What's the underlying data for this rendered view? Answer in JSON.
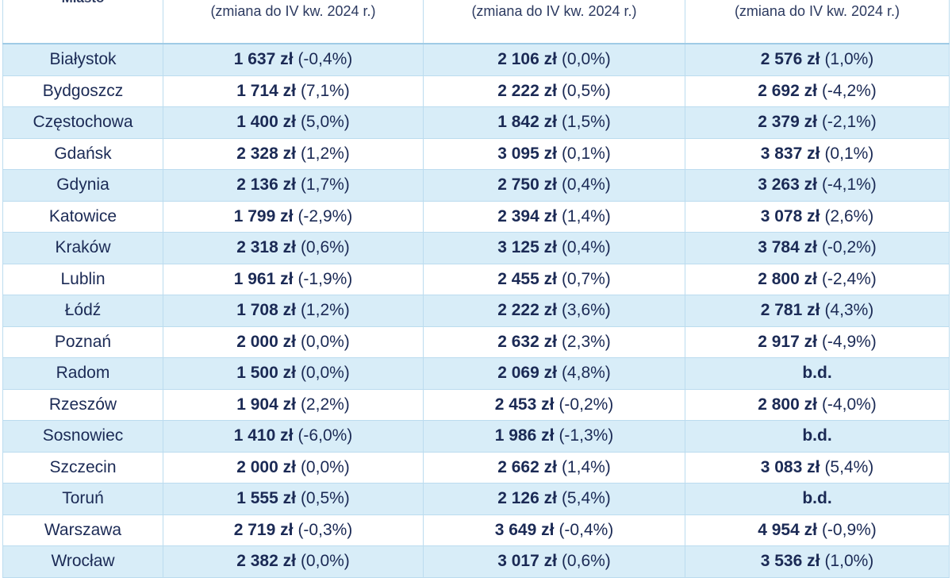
{
  "table": {
    "header": [
      "Miasto",
      "(zmiana do IV kw. 2024 r.)",
      "(zmiana do IV kw. 2024 r.)",
      "(zmiana do IV kw. 2024 r.)"
    ],
    "rows": [
      [
        "Białystok",
        [
          "1 637 zł",
          "(-0,4%)"
        ],
        [
          "2 106 zł",
          "(0,0%)"
        ],
        [
          "2 576 zł",
          "(1,0%)"
        ]
      ],
      [
        "Bydgoszcz",
        [
          "1 714 zł",
          "(7,1%)"
        ],
        [
          "2 222 zł",
          "(0,5%)"
        ],
        [
          "2 692 zł",
          "(-4,2%)"
        ]
      ],
      [
        "Częstochowa",
        [
          "1 400 zł",
          "(5,0%)"
        ],
        [
          "1 842 zł",
          "(1,5%)"
        ],
        [
          "2 379 zł",
          "(-2,1%)"
        ]
      ],
      [
        "Gdańsk",
        [
          "2 328 zł",
          "(1,2%)"
        ],
        [
          "3 095 zł",
          "(0,1%)"
        ],
        [
          "3 837 zł",
          "(0,1%)"
        ]
      ],
      [
        "Gdynia",
        [
          "2 136 zł",
          "(1,7%)"
        ],
        [
          "2 750 zł",
          "(0,4%)"
        ],
        [
          "3 263 zł",
          "(-4,1%)"
        ]
      ],
      [
        "Katowice",
        [
          "1 799 zł",
          "(-2,9%)"
        ],
        [
          "2 394 zł",
          "(1,4%)"
        ],
        [
          "3 078 zł",
          "(2,6%)"
        ]
      ],
      [
        "Kraków",
        [
          "2 318 zł",
          "(0,6%)"
        ],
        [
          "3 125 zł",
          "(0,4%)"
        ],
        [
          "3 784 zł",
          "(-0,2%)"
        ]
      ],
      [
        "Lublin",
        [
          "1 961 zł",
          "(-1,9%)"
        ],
        [
          "2 455 zł",
          "(0,7%)"
        ],
        [
          "2 800 zł",
          "(-2,4%)"
        ]
      ],
      [
        "Łódź",
        [
          "1 708 zł",
          "(1,2%)"
        ],
        [
          "2 222 zł",
          "(3,6%)"
        ],
        [
          "2 781 zł",
          "(4,3%)"
        ]
      ],
      [
        "Poznań",
        [
          "2 000 zł",
          "(0,0%)"
        ],
        [
          "2 632 zł",
          "(2,3%)"
        ],
        [
          "2 917 zł",
          "(-4,9%)"
        ]
      ],
      [
        "Radom",
        [
          "1 500 zł",
          "(0,0%)"
        ],
        [
          "2 069 zł",
          "(4,8%)"
        ],
        [
          "b.d."
        ]
      ],
      [
        "Rzeszów",
        [
          "1 904 zł",
          "(2,2%)"
        ],
        [
          "2 453 zł",
          "(-0,2%)"
        ],
        [
          "2 800 zł",
          "(-4,0%)"
        ]
      ],
      [
        "Sosnowiec",
        [
          "1 410 zł",
          "(-6,0%)"
        ],
        [
          "1 986 zł",
          "(-1,3%)"
        ],
        [
          "b.d."
        ]
      ],
      [
        "Szczecin",
        [
          "2 000 zł",
          "(0,0%)"
        ],
        [
          "2 662 zł",
          "(1,4%)"
        ],
        [
          "3 083 zł",
          "(5,4%)"
        ]
      ],
      [
        "Toruń",
        [
          "1 555 zł",
          "(0,5%)"
        ],
        [
          "2 126 zł",
          "(5,4%)"
        ],
        [
          "b.d."
        ]
      ],
      [
        "Warszawa",
        [
          "2 719 zł",
          "(-0,3%)"
        ],
        [
          "3 649 zł",
          "(-0,4%)"
        ],
        [
          "4 954 zł",
          "(-0,9%)"
        ]
      ],
      [
        "Wrocław",
        [
          "2 382 zł",
          "(0,0%)"
        ],
        [
          "3 017 zł",
          "(0,6%)"
        ],
        [
          "3 536 zł",
          "(1,0%)"
        ]
      ]
    ]
  }
}
